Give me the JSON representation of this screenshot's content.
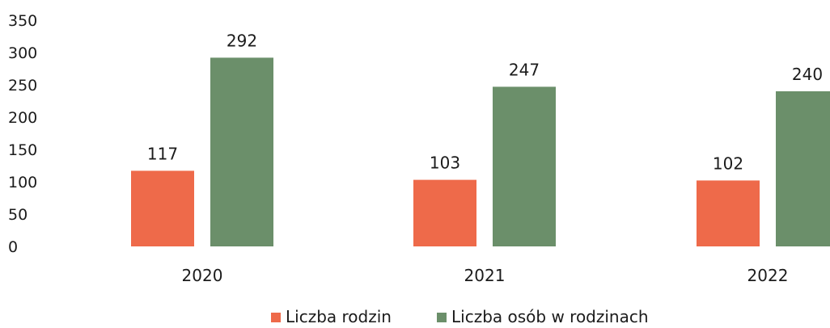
{
  "chart_data": {
    "type": "bar",
    "categories": [
      "2020",
      "2021",
      "2022"
    ],
    "series": [
      {
        "name": "Liczba rodzin",
        "values": [
          117,
          103,
          102
        ],
        "color": "#ee6a4a"
      },
      {
        "name": "Liczba osób w rodzinach",
        "values": [
          292,
          247,
          240
        ],
        "color": "#6b8f6a"
      }
    ],
    "yticks": [
      "0",
      "50",
      "100",
      "150",
      "200",
      "250",
      "300",
      "350"
    ],
    "ylim": [
      0,
      350
    ],
    "grid": false,
    "legend_position": "bottom-center"
  }
}
